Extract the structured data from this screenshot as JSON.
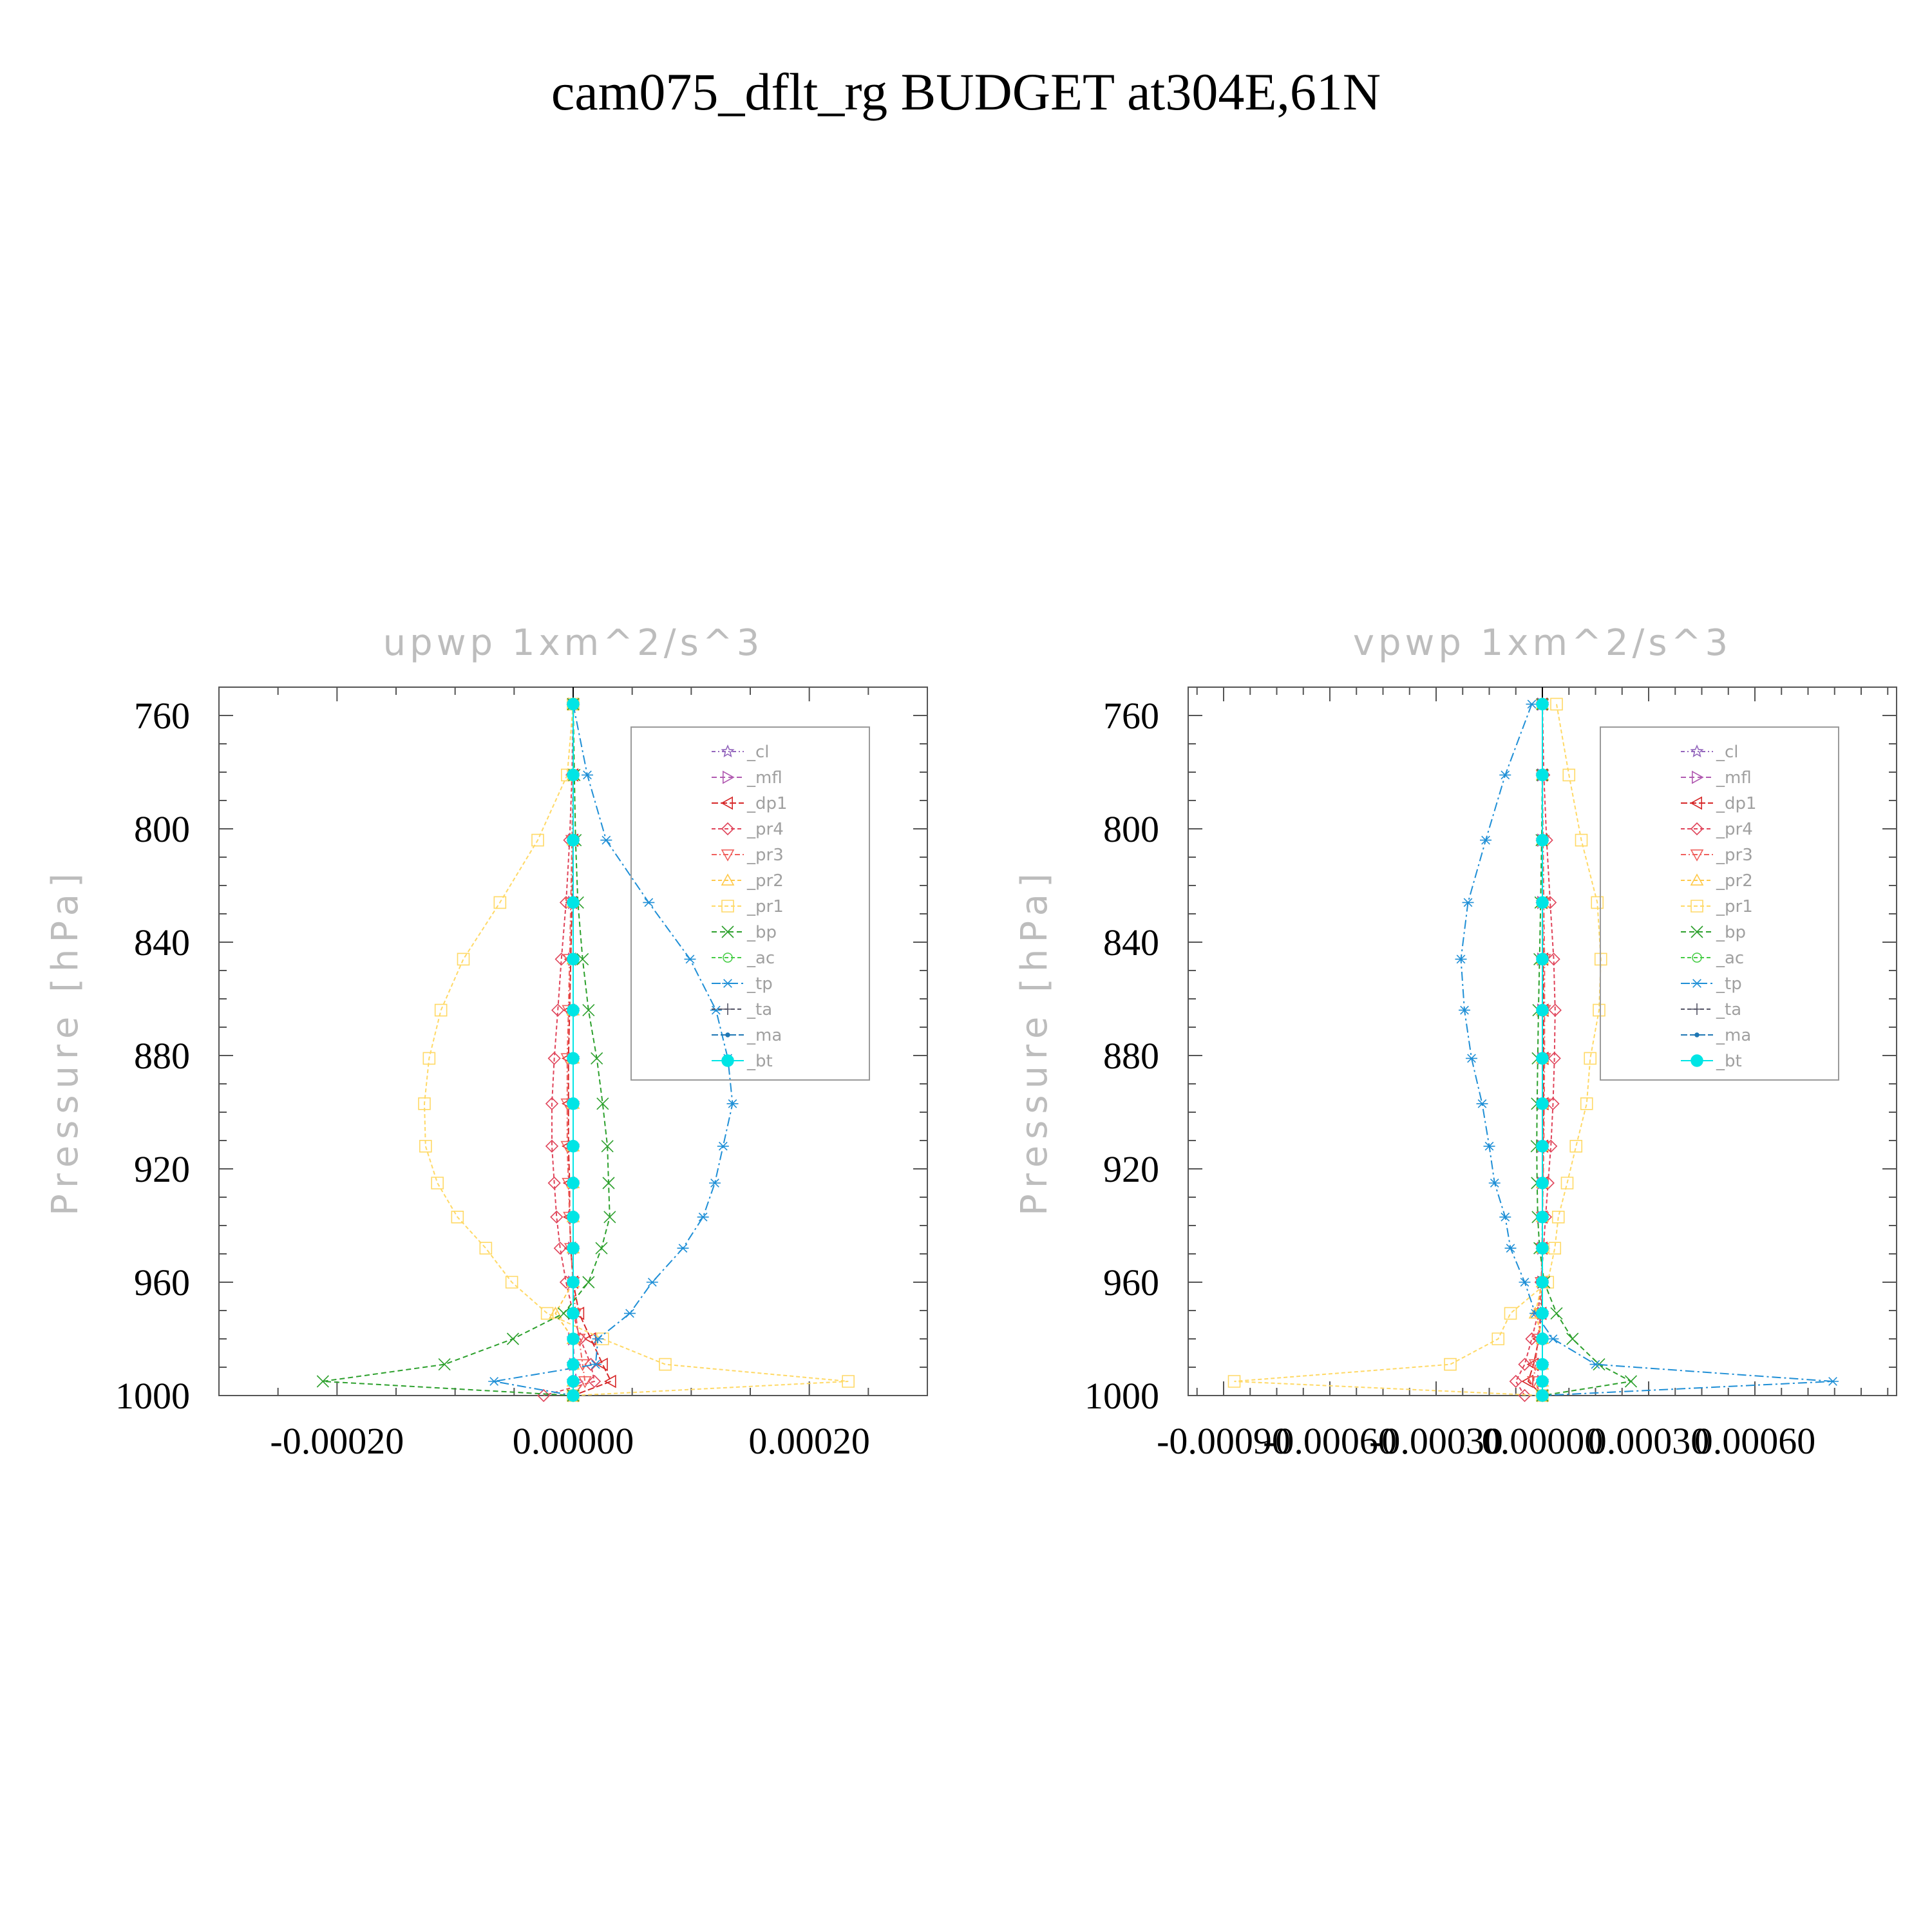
{
  "title": "cam075_dflt_rg  BUDGET at304E,61N",
  "series_styles": [
    {
      "key": "_cl",
      "color": "#9467bd",
      "marker": "star",
      "dash": "6,4,2,4"
    },
    {
      "key": "_mfl",
      "color": "#b15ab1",
      "marker": "triright",
      "dash": "8,5"
    },
    {
      "key": "_dp1",
      "color": "#d62728",
      "marker": "trileft",
      "dash": "10,4"
    },
    {
      "key": "_pr4",
      "color": "#e0445a",
      "marker": "diamond",
      "dash": "6,4"
    },
    {
      "key": "_pr3",
      "color": "#f0605d",
      "marker": "tridown",
      "dash": "8,4,2,4"
    },
    {
      "key": "_pr2",
      "color": "#ffc94a",
      "marker": "triup",
      "dash": "6,4"
    },
    {
      "key": "_pr1",
      "color": "#ffd966",
      "marker": "square",
      "dash": "6,4"
    },
    {
      "key": "_bp",
      "color": "#2ca02c",
      "marker": "cross",
      "dash": "8,5"
    },
    {
      "key": "_ac",
      "color": "#44cc44",
      "marker": "circle",
      "dash": "6,4"
    },
    {
      "key": "_tp",
      "color": "#1f8fd6",
      "marker": "asterisk",
      "dash": "14,5,3,5"
    },
    {
      "key": "_ta",
      "color": "#555566",
      "marker": "plus",
      "dash": "6,4"
    },
    {
      "key": "_ma",
      "color": "#1f77b4",
      "marker": "dot",
      "dash": "10,4"
    },
    {
      "key": "_bt",
      "color": "#00e5e5",
      "marker": "bigdot",
      "dash": ""
    }
  ],
  "chart_data": [
    {
      "type": "line",
      "title": "upwp    1xm^2/s^3",
      "ylabel": "Pressure  [hPa]",
      "xlim": [
        -0.0003,
        0.0003
      ],
      "ylim": [
        750,
        1000
      ],
      "xticks": [
        -0.0002,
        0.0,
        0.0002
      ],
      "xtick_labels": [
        "-0.00020",
        "0.00000",
        "0.00020"
      ],
      "yticks": [
        760,
        800,
        840,
        880,
        920,
        960,
        1000
      ],
      "ytick_labels": [
        "760",
        "800",
        "840",
        "880",
        "920",
        "960",
        "1000"
      ],
      "legend_position": "upper-right",
      "pressure": [
        756,
        781,
        804,
        826,
        846,
        864,
        881,
        897,
        912,
        925,
        937,
        948,
        960,
        971,
        980,
        989,
        995,
        1000
      ],
      "series": [
        {
          "name": "_cl",
          "values": [
            0,
            0,
            0,
            0,
            0,
            0,
            0,
            0,
            0,
            0,
            0,
            0,
            0,
            0,
            0,
            0,
            0,
            0
          ]
        },
        {
          "name": "_mfl",
          "values": [
            0,
            0,
            0,
            0,
            0,
            0,
            0,
            0,
            0,
            0,
            0,
            0,
            0,
            0,
            0,
            1e-06,
            3e-06,
            0
          ]
        },
        {
          "name": "_dp1",
          "values": [
            0,
            0,
            0,
            -1e-06,
            -2e-06,
            -3e-06,
            -4e-06,
            -4e-06,
            -4e-06,
            -3e-06,
            -3e-06,
            -2e-06,
            0,
            5e-06,
            1.5e-05,
            2.5e-05,
            3.2e-05,
            0
          ]
        },
        {
          "name": "_pr4",
          "values": [
            0,
            -1e-06,
            -3e-06,
            -6e-06,
            -1e-05,
            -1.3e-05,
            -1.6e-05,
            -1.8e-05,
            -1.8e-05,
            -1.6e-05,
            -1.4e-05,
            -1.1e-05,
            -6e-06,
            0,
            6e-06,
            1.5e-05,
            1.8e-05,
            -2.5e-05
          ]
        },
        {
          "name": "_pr3",
          "values": [
            0,
            0,
            -1e-06,
            -2e-06,
            -3e-06,
            -4e-06,
            -5e-06,
            -5e-06,
            -5e-06,
            -4e-06,
            -3e-06,
            -2e-06,
            0,
            2e-06,
            5e-06,
            8e-06,
            1e-05,
            0
          ]
        },
        {
          "name": "_pr2",
          "values": [
            0,
            0,
            0,
            0,
            0,
            0,
            0,
            0,
            0,
            0,
            0,
            0,
            0,
            -1.5e-05,
            0,
            0,
            0,
            0
          ]
        },
        {
          "name": "_pr1",
          "values": [
            0,
            -5e-06,
            -3e-05,
            -6.2e-05,
            -9.3e-05,
            -0.000112,
            -0.000122,
            -0.000126,
            -0.000125,
            -0.000115,
            -9.8e-05,
            -7.4e-05,
            -5.2e-05,
            -2.2e-05,
            2.5e-05,
            7.8e-05,
            0.000233,
            0
          ]
        },
        {
          "name": "_bp",
          "values": [
            0,
            1e-06,
            2e-06,
            4e-06,
            8e-06,
            1.3e-05,
            2e-05,
            2.5e-05,
            2.9e-05,
            3e-05,
            3.1e-05,
            2.4e-05,
            1.3e-05,
            -8e-06,
            -5.1e-05,
            -0.000109,
            -0.000212,
            0
          ]
        },
        {
          "name": "_ac",
          "values": [
            0,
            0,
            0,
            0,
            0,
            0,
            0,
            0,
            0,
            0,
            0,
            0,
            0,
            0,
            0,
            0,
            0,
            0
          ]
        },
        {
          "name": "_tp",
          "values": [
            0,
            1.2e-05,
            2.8e-05,
            6.4e-05,
            9.9e-05,
            0.000121,
            0.000131,
            0.000135,
            0.000127,
            0.00012,
            0.00011,
            9.3e-05,
            6.7e-05,
            4.8e-05,
            2.1e-05,
            1.9e-05,
            -6.7e-05,
            0
          ]
        },
        {
          "name": "_ta",
          "values": [
            0,
            0,
            0,
            0,
            0,
            0,
            0,
            0,
            0,
            0,
            0,
            0,
            0,
            0,
            0,
            0,
            0,
            0
          ]
        },
        {
          "name": "_ma",
          "values": [
            0,
            0,
            0,
            0,
            0,
            0,
            0,
            0,
            0,
            0,
            0,
            0,
            0,
            0,
            0,
            0,
            0,
            0
          ]
        },
        {
          "name": "_bt",
          "values": [
            0,
            0,
            0,
            0,
            0,
            0,
            0,
            0,
            0,
            0,
            0,
            0,
            0,
            0,
            0,
            0,
            0,
            0
          ]
        }
      ]
    },
    {
      "type": "line",
      "title": "vpwp    1xm^2/s^3",
      "ylabel": "Pressure  [hPa]",
      "xlim": [
        -0.001,
        0.001
      ],
      "ylim": [
        750,
        1000
      ],
      "xticks": [
        -0.0009,
        -0.0006,
        -0.0003,
        0.0,
        0.0003,
        0.0006
      ],
      "xtick_labels": [
        "-0.00090",
        "-0.00060",
        "-0.00030",
        "0.00000",
        "0.00030",
        "0.00060"
      ],
      "yticks": [
        760,
        800,
        840,
        880,
        920,
        960,
        1000
      ],
      "ytick_labels": [
        "760",
        "800",
        "840",
        "880",
        "920",
        "960",
        "1000"
      ],
      "legend_position": "upper-right",
      "pressure": [
        756,
        781,
        804,
        826,
        846,
        864,
        881,
        897,
        912,
        925,
        937,
        948,
        960,
        971,
        980,
        989,
        995,
        1000
      ],
      "series": [
        {
          "name": "_cl",
          "values": [
            0,
            0,
            0,
            0,
            0,
            0,
            0,
            0,
            0,
            0,
            0,
            0,
            0,
            0,
            0,
            0,
            0,
            0
          ]
        },
        {
          "name": "_mfl",
          "values": [
            0,
            0,
            0,
            0,
            0,
            0,
            0,
            0,
            0,
            0,
            0,
            0,
            0,
            0,
            0,
            0,
            0,
            0
          ]
        },
        {
          "name": "_dp1",
          "values": [
            0,
            0,
            0,
            0,
            2e-06,
            3e-06,
            3e-06,
            3e-06,
            2e-06,
            1e-06,
            0,
            0,
            0,
            -3e-06,
            -1e-05,
            -2.5e-05,
            -4e-05,
            0
          ]
        },
        {
          "name": "_pr4",
          "values": [
            0,
            4e-06,
            1.2e-05,
            2.2e-05,
            3.2e-05,
            3.6e-05,
            3.4e-05,
            3e-05,
            2.4e-05,
            1.6e-05,
            9e-06,
            3e-06,
            -4e-06,
            -1.2e-05,
            -3e-05,
            -5e-05,
            -7.5e-05,
            -5e-05
          ]
        },
        {
          "name": "_pr3",
          "values": [
            0,
            0,
            2e-06,
            4e-06,
            6e-06,
            6e-06,
            6e-06,
            5e-06,
            4e-06,
            2e-06,
            0,
            -1e-06,
            -3e-06,
            -6e-06,
            -1.2e-05,
            -2e-05,
            -2.5e-05,
            0
          ]
        },
        {
          "name": "_pr2",
          "values": [
            0,
            0,
            0,
            0,
            0,
            0,
            0,
            0,
            0,
            0,
            0,
            0,
            0,
            -2e-05,
            0,
            0,
            0,
            0
          ]
        },
        {
          "name": "_pr1",
          "values": [
            4e-05,
            7.5e-05,
            0.00011,
            0.000155,
            0.000165,
            0.00016,
            0.000135,
            0.000125,
            9.5e-05,
            7e-05,
            4.5e-05,
            3.5e-05,
            1.5e-05,
            -9e-05,
            -0.000125,
            -0.00026,
            -0.00087,
            0
          ]
        },
        {
          "name": "_bp",
          "values": [
            0,
            0,
            -2e-06,
            -5e-06,
            -8e-06,
            -1.1e-05,
            -1.3e-05,
            -1.5e-05,
            -1.6e-05,
            -1.5e-05,
            -1.3e-05,
            -8e-06,
            5e-06,
            4e-05,
            8.5e-05,
            0.00016,
            0.00025,
            0
          ]
        },
        {
          "name": "_ac",
          "values": [
            0,
            0,
            0,
            0,
            0,
            0,
            0,
            0,
            0,
            0,
            0,
            0,
            0,
            0,
            0,
            0,
            0,
            0
          ]
        },
        {
          "name": "_tp",
          "values": [
            -3e-05,
            -0.000105,
            -0.00016,
            -0.00021,
            -0.00023,
            -0.00022,
            -0.0002,
            -0.00017,
            -0.00015,
            -0.000135,
            -0.000105,
            -9e-05,
            -5e-05,
            -2e-05,
            3e-05,
            0.00015,
            0.00082,
            0
          ]
        },
        {
          "name": "_ta",
          "values": [
            0,
            0,
            0,
            0,
            0,
            0,
            0,
            0,
            0,
            0,
            0,
            0,
            0,
            0,
            0,
            0,
            0,
            0
          ]
        },
        {
          "name": "_ma",
          "values": [
            0,
            0,
            0,
            0,
            0,
            0,
            0,
            0,
            0,
            0,
            0,
            0,
            0,
            0,
            0,
            0,
            0,
            0
          ]
        },
        {
          "name": "_bt",
          "values": [
            0,
            0,
            0,
            0,
            0,
            0,
            0,
            0,
            0,
            0,
            0,
            0,
            0,
            0,
            0,
            0,
            0,
            0
          ]
        }
      ]
    }
  ]
}
